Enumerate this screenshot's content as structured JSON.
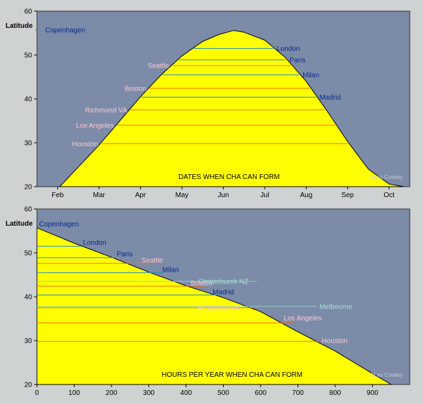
{
  "colors": {
    "background": "#cfd2d3",
    "sky": "#7b8ba8",
    "fill": "#ffff00",
    "warm_line": "#ff6a00",
    "cool_line": "#2a8fb0",
    "southern_line": "#8fd0c8",
    "blue_label": "#0a2a8a",
    "pink_label": "#ffc8d2",
    "teal_label": "#a8e0d8"
  },
  "chart_data": [
    {
      "type": "area",
      "annotation": "DATES WHEN CHA CAN FORM",
      "credit": "©Les Cowley",
      "ylabel": "Latitude",
      "ylim": [
        20,
        60
      ],
      "yticks": [
        "20",
        "30",
        "40",
        "50",
        "60"
      ],
      "xlim": [
        0,
        9
      ],
      "xtick_positions": [
        0.5,
        1.5,
        2.5,
        3.5,
        4.5,
        5.5,
        6.5,
        7.5,
        8.5
      ],
      "xtick_labels": [
        "Feb",
        "Mar",
        "Apr",
        "May",
        "Jun",
        "Jul",
        "Aug",
        "Sep",
        "Oct"
      ],
      "x_axis_units": "months from Feb 1",
      "curve": {
        "x": [
          0.55,
          1.0,
          1.5,
          2.0,
          2.5,
          3.0,
          3.5,
          4.0,
          4.4,
          4.75,
          5.0,
          5.5,
          6.0,
          6.5,
          7.0,
          7.5,
          8.0,
          8.5,
          8.85
        ],
        "y": [
          20,
          24.5,
          29.5,
          35.0,
          40.5,
          45.5,
          49.8,
          53.1,
          54.7,
          55.6,
          55.2,
          53.4,
          49.4,
          44.0,
          37.3,
          30.3,
          24.0,
          20.6,
          20
        ]
      },
      "cities": [
        {
          "name": "Copenhagen",
          "lat": 55.7,
          "color": "blue"
        },
        {
          "name": "London",
          "lat": 51.5,
          "color": "blue"
        },
        {
          "name": "Paris",
          "lat": 48.9,
          "color": "blue"
        },
        {
          "name": "Seattle",
          "lat": 47.6,
          "color": "pink"
        },
        {
          "name": "Milan",
          "lat": 45.5,
          "color": "blue"
        },
        {
          "name": "Boston",
          "lat": 42.4,
          "color": "pink"
        },
        {
          "name": "Madrid",
          "lat": 40.4,
          "color": "blue"
        },
        {
          "name": "Richmond VA",
          "lat": 37.5,
          "color": "pink"
        },
        {
          "name": "Los Angeles",
          "lat": 34.0,
          "color": "pink"
        },
        {
          "name": "Houston",
          "lat": 29.8,
          "color": "pink"
        }
      ]
    },
    {
      "type": "area",
      "annotation": "HOURS PER YEAR WHEN CHA CAN FORM",
      "credit": "©Les Cowley",
      "ylabel": "Latitude",
      "ylim": [
        20,
        60
      ],
      "yticks": [
        "20",
        "30",
        "40",
        "50",
        "60"
      ],
      "xlim": [
        0,
        1000
      ],
      "xticks": [
        "0",
        "100",
        "200",
        "300",
        "400",
        "500",
        "600",
        "700",
        "800",
        "900"
      ],
      "curve": {
        "x": [
          0,
          100,
          200,
          300,
          400,
          500,
          600,
          700,
          800,
          900,
          950
        ],
        "y": [
          55.7,
          52.2,
          49.0,
          45.6,
          42.5,
          39.8,
          36.6,
          32.0,
          27.6,
          22.5,
          20
        ]
      },
      "cities": [
        {
          "name": "Copenhagen",
          "lat": 55.7,
          "hours": 0,
          "color": "blue"
        },
        {
          "name": "London",
          "lat": 51.5,
          "hours": 120,
          "color": "blue"
        },
        {
          "name": "Paris",
          "lat": 48.9,
          "hours": 210,
          "color": "blue"
        },
        {
          "name": "Seattle",
          "lat": 47.6,
          "hours": 310,
          "color": "pink"
        },
        {
          "name": "Milan",
          "lat": 45.5,
          "hours": 340,
          "color": "blue"
        },
        {
          "name": "Christchurch NZ",
          "lat": 43.5,
          "hours": 410,
          "color": "teal",
          "line_to": 590
        },
        {
          "name": "Boston",
          "lat": 42.4,
          "hours": 450,
          "color": "pink"
        },
        {
          "name": "Madrid",
          "lat": 40.4,
          "hours": 490,
          "color": "blue"
        },
        {
          "name": "Richmond VA",
          "lat": 37.5,
          "hours": 590,
          "color": "pink"
        },
        {
          "name": "Melbourne",
          "lat": 37.8,
          "hours": 610,
          "color": "teal",
          "line_to": 750
        },
        {
          "name": "Los Angeles",
          "lat": 34.0,
          "hours": 690,
          "color": "pink"
        },
        {
          "name": "Houston",
          "lat": 29.8,
          "hours": 760,
          "color": "pink"
        }
      ]
    }
  ]
}
